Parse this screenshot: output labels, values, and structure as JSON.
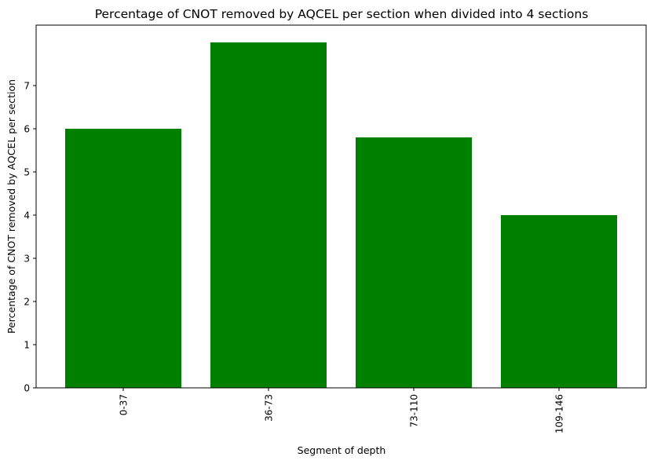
{
  "chart_data": {
    "type": "bar",
    "title": "Percentage of CNOT removed by AQCEL per section when divided into 4 sections",
    "xlabel": "Segment of depth",
    "ylabel": "Percentage of CNOT removed by AQCEL per section",
    "categories": [
      "0-37",
      "36-73",
      "73-110",
      "109-146"
    ],
    "values": [
      6.0,
      8.0,
      5.8,
      4.0
    ],
    "ylim": [
      0,
      8.4
    ],
    "yticks": [
      0,
      1,
      2,
      3,
      4,
      5,
      6,
      7
    ],
    "xtick_rotation": 90,
    "grid": false,
    "colors": {
      "bar": "#008000"
    }
  }
}
